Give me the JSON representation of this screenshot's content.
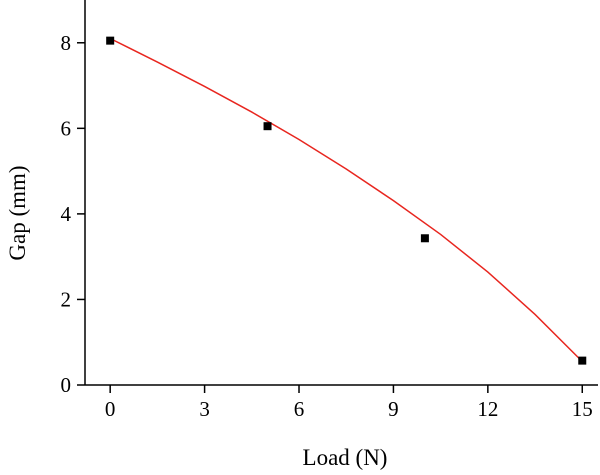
{
  "chart_data": {
    "type": "scatter",
    "title": "",
    "xlabel": "Load (N)",
    "ylabel": "Gap (mm)",
    "xlim": [
      -0.8,
      15.5
    ],
    "ylim": [
      0,
      9
    ],
    "xticks": [
      0,
      3,
      6,
      9,
      12,
      15
    ],
    "yticks": [
      0,
      2,
      4,
      6,
      8
    ],
    "grid": false,
    "legend": "none",
    "series": [
      {
        "type": "scatter",
        "marker": "square",
        "color": "#000000",
        "x": [
          0,
          5,
          10,
          15
        ],
        "y": [
          8.05,
          6.05,
          3.43,
          0.57
        ]
      },
      {
        "type": "line",
        "color": "#e8261f",
        "x": [
          0,
          1.5,
          3,
          4.5,
          6,
          7.5,
          9,
          10.5,
          12,
          13.5,
          15
        ],
        "y": [
          8.1,
          7.55,
          6.98,
          6.38,
          5.74,
          5.05,
          4.31,
          3.52,
          2.64,
          1.65,
          0.55
        ]
      }
    ]
  }
}
